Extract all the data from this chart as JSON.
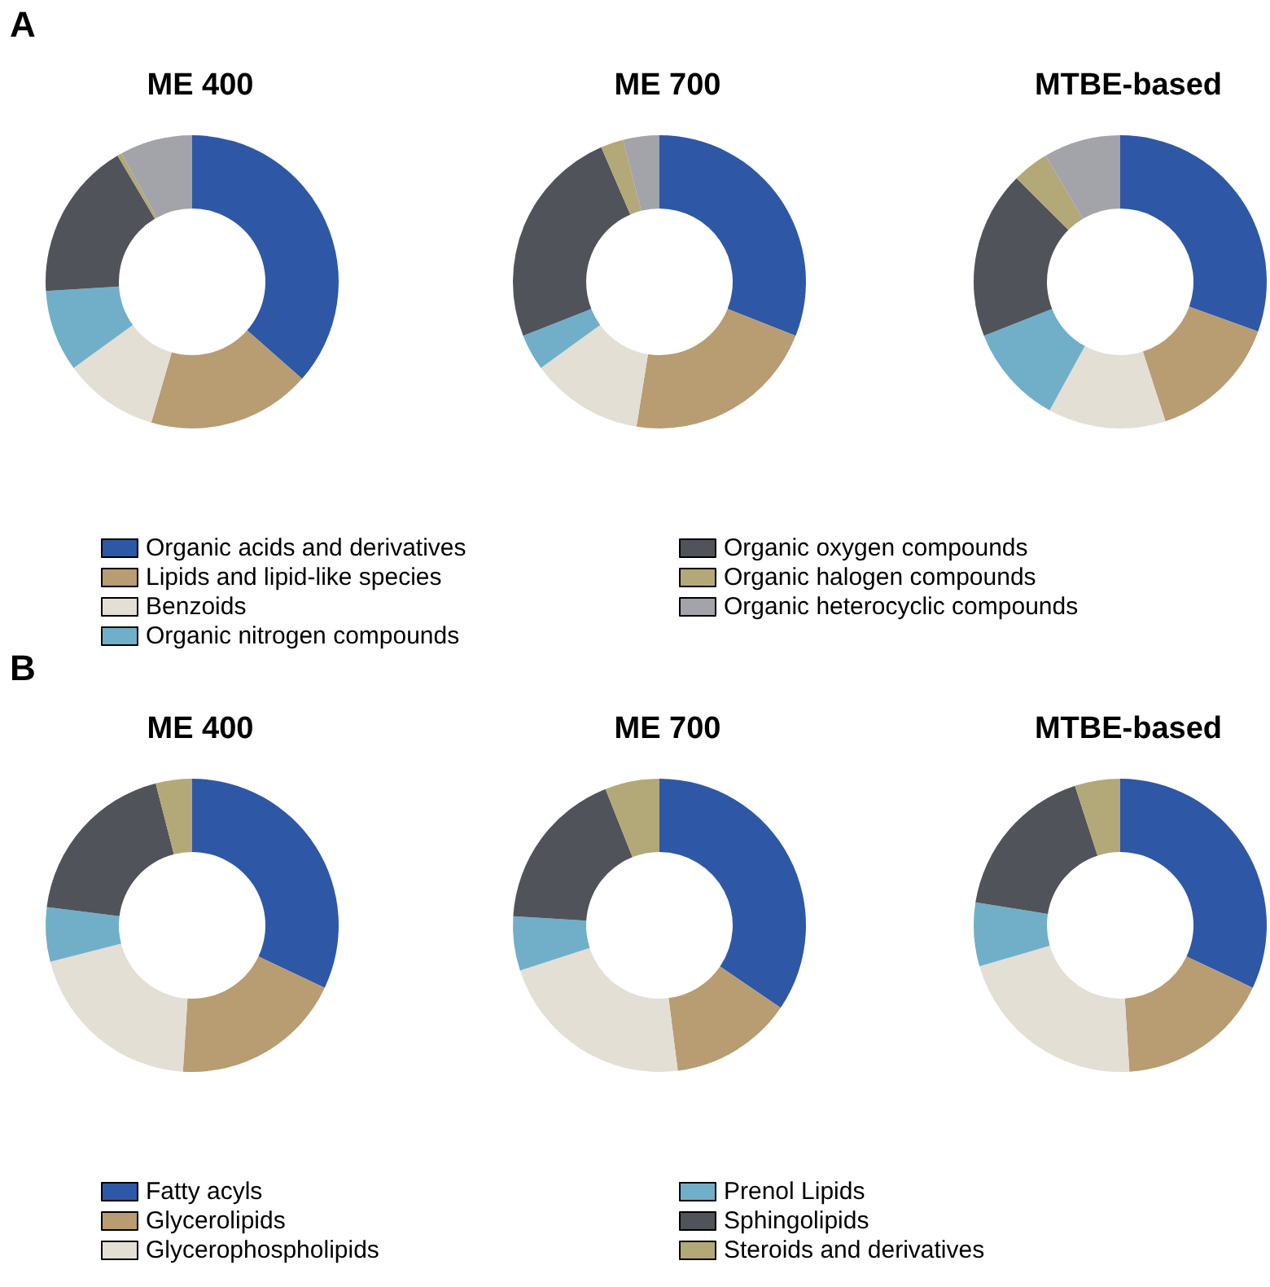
{
  "chart_data": [
    {
      "type": "donut",
      "annotations": [
        "A"
      ],
      "legend": "bottom",
      "categories": [
        "Organic acids and derivatives",
        "Lipids and lipid-like species",
        "Benzoids",
        "Organic nitrogen compounds",
        "Organic oxygen compounds",
        "Organic halogen compounds",
        "Organic heterocyclic compounds"
      ],
      "colors": [
        "#2e58a6",
        "#b89c72",
        "#e3dfd5",
        "#71afc9",
        "#50535a",
        "#b3a878",
        "#a3a3aa"
      ],
      "series": [
        {
          "name": "ME 400",
          "values": [
            36.5,
            18,
            10.5,
            9,
            17.5,
            0.5,
            8
          ]
        },
        {
          "name": "ME 700",
          "values": [
            31,
            21.5,
            12.5,
            4,
            24.5,
            2.5,
            4
          ]
        },
        {
          "name": "MTBE-based",
          "values": [
            30.5,
            14.5,
            13,
            11,
            18.5,
            4,
            8.5
          ]
        }
      ]
    },
    {
      "type": "donut",
      "annotations": [
        "B"
      ],
      "legend": "bottom",
      "categories": [
        "Fatty acyls",
        "Glycerolipids",
        "Glycerophospholipids",
        "Prenol Lipids",
        "Sphingolipids",
        "Steroids and derivatives"
      ],
      "colors": [
        "#2e58a6",
        "#b89c72",
        "#e3dfd5",
        "#71afc9",
        "#50535a",
        "#b3a878"
      ],
      "series": [
        {
          "name": "ME 400",
          "values": [
            32,
            19,
            20,
            6,
            19,
            4
          ]
        },
        {
          "name": "ME 700",
          "values": [
            34.5,
            13.5,
            22,
            6,
            18,
            6
          ]
        },
        {
          "name": "MTBE-based",
          "values": [
            32,
            17,
            21.5,
            7,
            17.5,
            5
          ]
        }
      ]
    }
  ]
}
